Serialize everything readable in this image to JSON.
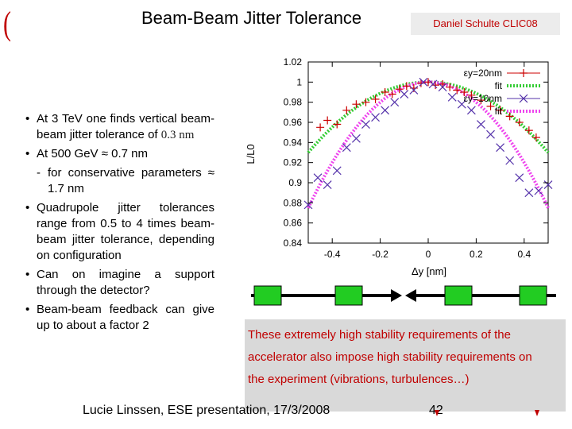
{
  "slide": {
    "title": "Beam-Beam Jitter Tolerance",
    "author_tag": "Daniel Schulte CLIC08",
    "corner_mark": "(",
    "bullets": [
      {
        "text": "At 3 TeV one finds vertical beam-beam jitter tolerance of",
        "math": "0.3 nm"
      },
      {
        "text": "At 500 GeV ≈ 0.7 nm",
        "math": ""
      },
      {
        "text": "for conservative parameters ≈ 1.7 nm",
        "math": ""
      },
      {
        "text": "Quadrupole jitter tolerances range from 0.5 to 4 times beam-beam jitter tolerance, depending on configuration",
        "math": ""
      },
      {
        "text": "Can on imagine a support through the detector?",
        "math": ""
      },
      {
        "text": "Beam-beam feedback can give up to about a factor 2",
        "math": ""
      }
    ],
    "callout": "These extremely high stability requirements of the accelerator also impose high stability requirements on the experiment (vibrations, turbulences…)",
    "footer": "Lucie Linssen, ESE presentation, 17/3/2008",
    "page_number": "42",
    "colors": {
      "accent_red": "#c00000",
      "green_fit": "#33cc33",
      "magenta_fit": "#ee44ee",
      "series_red": "#cc0000",
      "series_purple": "#5533aa"
    }
  },
  "chart_data": {
    "type": "scatter",
    "title": "",
    "xlabel": "Δy [nm]",
    "ylabel": "L/L0",
    "xlim": [
      -0.5,
      0.5
    ],
    "ylim": [
      0.84,
      1.02
    ],
    "xticks": [
      -0.4,
      -0.2,
      0,
      0.2,
      0.4
    ],
    "xtick_labels": [
      "-0.4",
      "-0.2",
      "0",
      "0.2",
      "0.4"
    ],
    "yticks": [
      0.84,
      0.86,
      0.88,
      0.9,
      0.92,
      0.94,
      0.96,
      0.98,
      1,
      1.02
    ],
    "ytick_labels": [
      "0.84",
      "0.86",
      "0.88",
      "0.9",
      "0.92",
      "0.94",
      "0.96",
      "0.98",
      "1",
      "1.02"
    ],
    "legend": [
      "εy=20nm",
      "fit",
      "εy=10nm",
      "fit"
    ],
    "series": [
      {
        "name": "εy=20nm",
        "marker": "plus",
        "color": "#cc0000",
        "x": [
          -0.45,
          -0.42,
          -0.38,
          -0.34,
          -0.3,
          -0.26,
          -0.22,
          -0.18,
          -0.15,
          -0.12,
          -0.09,
          -0.06,
          -0.03,
          0,
          0.03,
          0.06,
          0.09,
          0.12,
          0.15,
          0.18,
          0.22,
          0.26,
          0.3,
          0.34,
          0.38,
          0.42,
          0.45
        ],
        "y": [
          0.955,
          0.962,
          0.958,
          0.972,
          0.978,
          0.98,
          0.983,
          0.99,
          0.988,
          0.993,
          0.996,
          0.994,
          0.999,
          1.0,
          0.997,
          0.998,
          0.995,
          0.992,
          0.99,
          0.987,
          0.982,
          0.976,
          0.972,
          0.966,
          0.96,
          0.952,
          0.945
        ]
      },
      {
        "name": "fit",
        "line": true,
        "color": "#33cc33",
        "a": 1.0,
        "b": 0.28
      },
      {
        "name": "εy=10nm",
        "marker": "cross",
        "color": "#5533aa",
        "x": [
          -0.5,
          -0.46,
          -0.42,
          -0.38,
          -0.34,
          -0.3,
          -0.26,
          -0.22,
          -0.18,
          -0.14,
          -0.1,
          -0.06,
          -0.02,
          0.02,
          0.06,
          0.1,
          0.14,
          0.18,
          0.22,
          0.26,
          0.3,
          0.34,
          0.38,
          0.42,
          0.46,
          0.5
        ],
        "y": [
          0.878,
          0.905,
          0.898,
          0.912,
          0.935,
          0.944,
          0.958,
          0.965,
          0.972,
          0.98,
          0.988,
          0.992,
          1.0,
          0.998,
          0.995,
          0.985,
          0.978,
          0.972,
          0.958,
          0.948,
          0.935,
          0.922,
          0.905,
          0.89,
          0.892,
          0.898
        ]
      },
      {
        "name": "fit",
        "line": true,
        "color": "#ee44ee",
        "a": 1.0,
        "b": 0.5
      }
    ]
  }
}
